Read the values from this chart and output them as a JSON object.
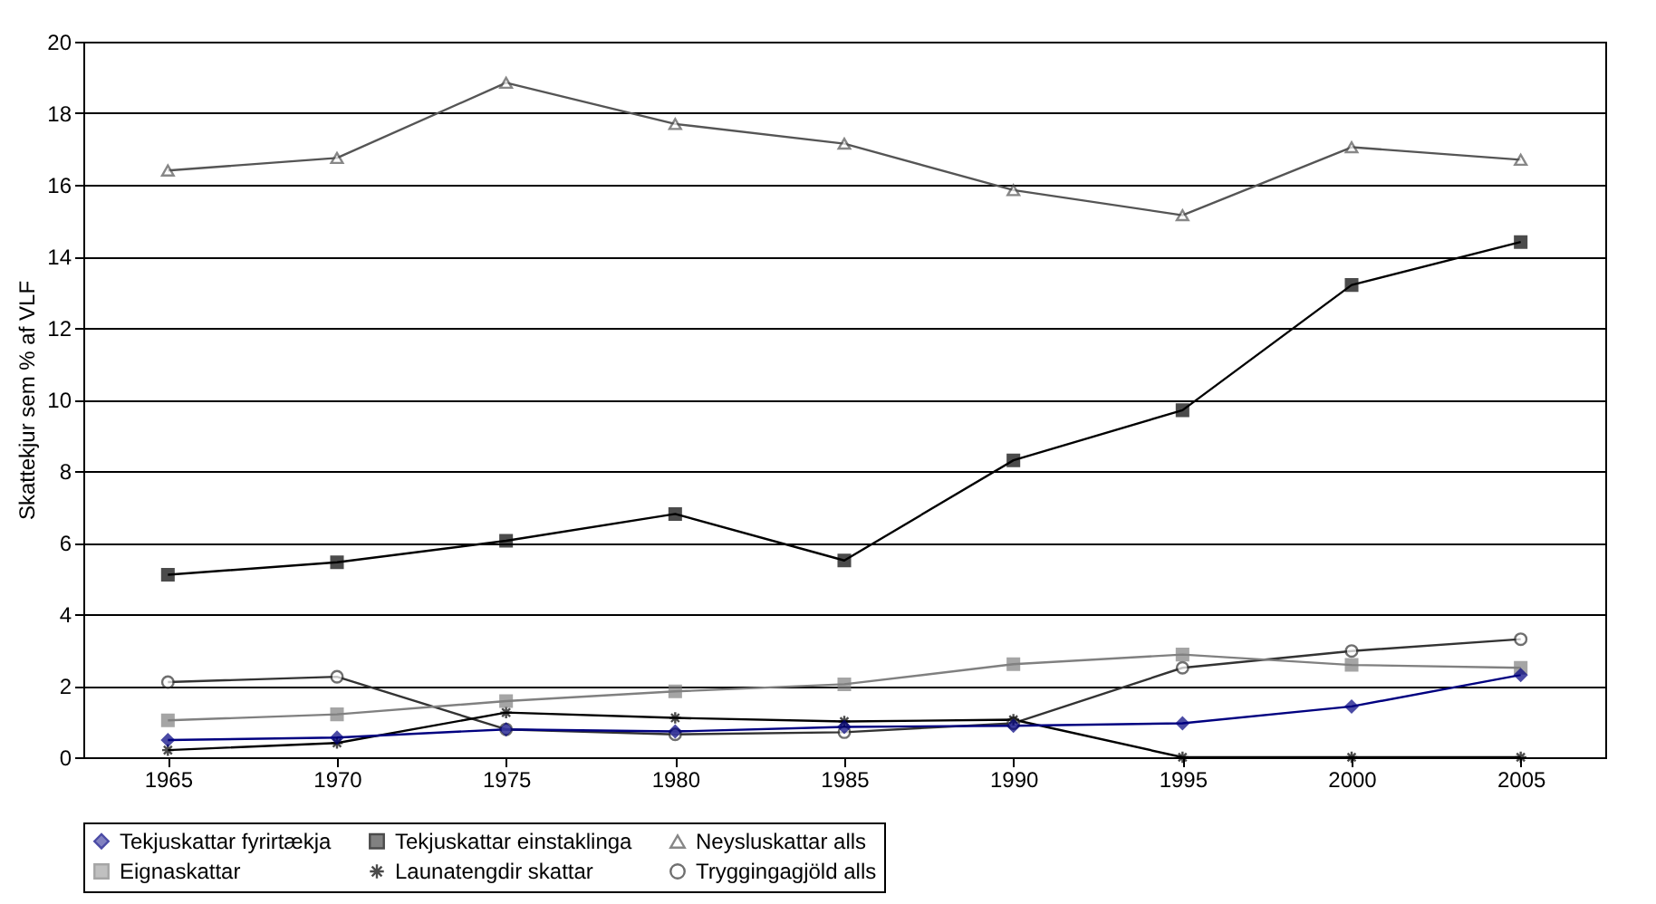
{
  "chart_data": {
    "type": "line",
    "ylabel": "Skattekjur sem % af VLF",
    "categories": [
      "1965",
      "1970",
      "1975",
      "1980",
      "1985",
      "1990",
      "1995",
      "2000",
      "2005"
    ],
    "ylim": [
      0,
      20
    ],
    "yticks": [
      0,
      2,
      4,
      6,
      8,
      10,
      12,
      14,
      16,
      18,
      20
    ],
    "grid": "y",
    "legend": "bottom",
    "series": [
      {
        "name": "Tekjuskattar fyrirtækja",
        "color": "#000080",
        "marker": "diamond",
        "values": [
          0.48,
          0.55,
          0.78,
          0.72,
          0.85,
          0.88,
          0.95,
          1.42,
          2.3
        ]
      },
      {
        "name": "Tekjuskattar einstaklinga",
        "color": "#000000",
        "marker": "square",
        "values": [
          5.1,
          5.45,
          6.05,
          6.8,
          5.5,
          8.3,
          9.7,
          13.2,
          14.4
        ]
      },
      {
        "name": "Neysluskattar alls",
        "color": "#555555",
        "marker": "triangle",
        "values": [
          16.4,
          16.75,
          18.85,
          17.7,
          17.15,
          15.85,
          15.15,
          17.05,
          16.7
        ]
      },
      {
        "name": "Eignaskattar",
        "color": "#808080",
        "marker": "square",
        "values": [
          1.03,
          1.2,
          1.57,
          1.84,
          2.04,
          2.6,
          2.87,
          2.58,
          2.5
        ]
      },
      {
        "name": "Launatengdir skattar",
        "color": "#000000",
        "marker": "cross",
        "values": [
          0.2,
          0.4,
          1.25,
          1.1,
          1.0,
          1.05,
          0,
          0,
          0
        ]
      },
      {
        "name": "Tryggingagjöld alls",
        "color": "#333333",
        "marker": "circle",
        "values": [
          2.1,
          2.25,
          0.78,
          0.64,
          0.7,
          0.95,
          2.5,
          2.97,
          3.3
        ]
      }
    ]
  }
}
